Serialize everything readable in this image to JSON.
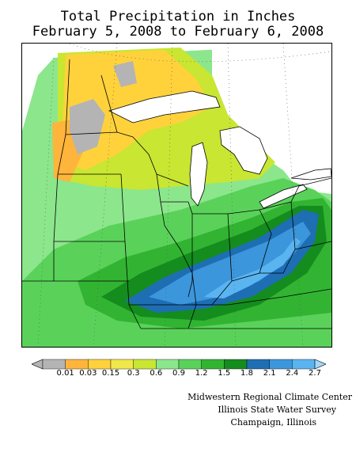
{
  "title": {
    "line1": "Total Precipitation in Inches",
    "line2": "February 5, 2008 to February 6, 2008"
  },
  "legend": {
    "below_color": "#b4b4b4",
    "above_color": "#a0d8ff",
    "bins": [
      {
        "label": "0.01",
        "color": "#ffb43c"
      },
      {
        "label": "0.03",
        "color": "#ffd23c"
      },
      {
        "label": "0.15",
        "color": "#f0e84a"
      },
      {
        "label": "0.3",
        "color": "#c8e632"
      },
      {
        "label": "0.6",
        "color": "#8ce68c"
      },
      {
        "label": "0.9",
        "color": "#5ad25a"
      },
      {
        "label": "1.2",
        "color": "#32b432"
      },
      {
        "label": "1.5",
        "color": "#148c1e"
      },
      {
        "label": "1.8",
        "color": "#1e6eb4"
      },
      {
        "label": "2.1",
        "color": "#3c96dc"
      },
      {
        "label": "2.4",
        "color": "#5ab4f0"
      },
      {
        "label": "2.7",
        "color": ""
      }
    ]
  },
  "credits": {
    "line1": "Midwestern Regional Climate Center",
    "line2": "Illinois State Water Survey",
    "line3": "Champaign, Illinois"
  },
  "map": {
    "colors": {
      "gray": "#b4b4b4",
      "orange": "#ffb43c",
      "yellow": "#ffd23c",
      "lime": "#c8e632",
      "light_green": "#8ce68c",
      "green": "#5ad25a",
      "mid_green": "#32b432",
      "dark_green": "#148c1e",
      "dark_blue": "#1e6eb4",
      "blue": "#3c96dc",
      "light_blue": "#5ab4f0",
      "lake": "#ffffff",
      "border": "#000000"
    }
  }
}
